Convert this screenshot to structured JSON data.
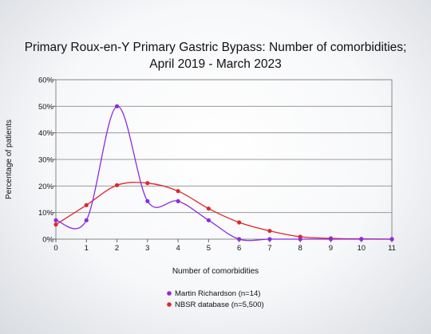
{
  "chart_data": {
    "type": "line",
    "title_lines": [
      "Primary Roux-en-Y Primary Gastric Bypass: Number of comorbidities;",
      "April 2019 - March 2023"
    ],
    "xlabel": "Number of comorbidities",
    "ylabel": "Percentage of patients",
    "x": [
      0,
      1,
      2,
      3,
      4,
      5,
      6,
      7,
      8,
      9,
      10,
      11
    ],
    "x_tick_labels": [
      "0",
      "1",
      "2",
      "3",
      "4",
      "5",
      "6",
      "7",
      "8",
      "9",
      "10",
      "11"
    ],
    "ylim": [
      0,
      60
    ],
    "y_ticks": [
      0,
      10,
      20,
      30,
      40,
      50,
      60
    ],
    "y_tick_labels": [
      "0%",
      "10%",
      "20%",
      "30%",
      "40%",
      "50%",
      "60%"
    ],
    "grid": "horizontal",
    "legend_position": "bottom",
    "series": [
      {
        "name": "Martin Richardson (n=14)",
        "color": "#8b2be2",
        "values": [
          7.1,
          7.1,
          50.0,
          14.3,
          14.3,
          7.1,
          0,
          0,
          0,
          0,
          0,
          0
        ]
      },
      {
        "name": "NBSR database (n=5,500)",
        "color": "#e0262b",
        "values": [
          5.5,
          12.8,
          20.3,
          21.1,
          18.1,
          11.5,
          6.3,
          3.1,
          0.9,
          0.3,
          0.1,
          0.0
        ]
      }
    ]
  }
}
